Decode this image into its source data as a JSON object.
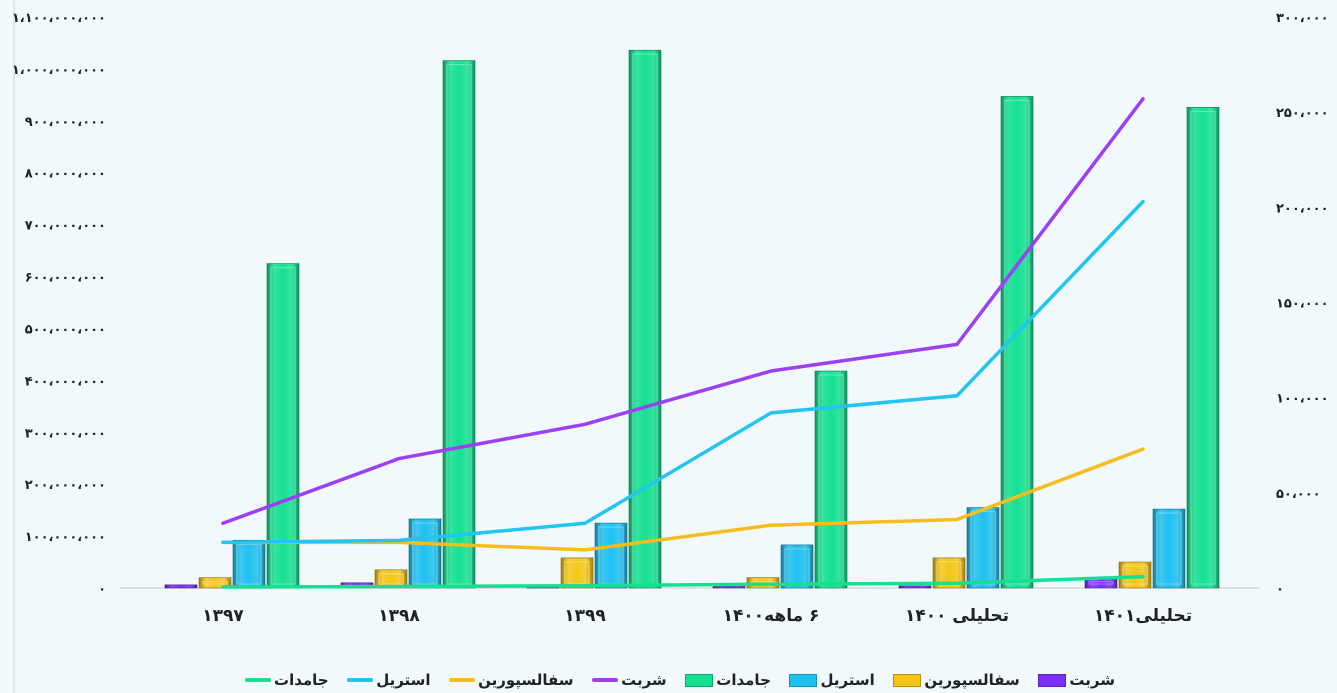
{
  "chart_data": {
    "type": "bar",
    "categories": [
      "۱۳۹۷",
      "۱۳۹۸",
      "۱۳۹۹",
      "۶ ماهه۱۴۰۰",
      "تحلیلی ۱۴۰۰",
      "تحلیلی۱۴۰۱"
    ],
    "left_axis": {
      "ylim": [
        0,
        1100000000
      ],
      "ticks": [
        "۰",
        "۱۰۰،۰۰۰،۰۰۰",
        "۲۰۰،۰۰۰،۰۰۰",
        "۳۰۰،۰۰۰،۰۰۰",
        "۴۰۰،۰۰۰،۰۰۰",
        "۵۰۰،۰۰۰،۰۰۰",
        "۶۰۰،۰۰۰،۰۰۰",
        "۷۰۰،۰۰۰،۰۰۰",
        "۸۰۰،۰۰۰،۰۰۰",
        "۹۰۰،۰۰۰،۰۰۰",
        "۱،۰۰۰،۰۰۰،۰۰۰",
        "۱،۱۰۰،۰۰۰،۰۰۰"
      ]
    },
    "right_axis": {
      "ylim": [
        0,
        300000
      ],
      "ticks": [
        "۰",
        "۵۰،۰۰۰",
        "۱۰۰،۰۰۰",
        "۱۵۰،۰۰۰",
        "۲۰۰،۰۰۰",
        "۲۵۰،۰۰۰",
        "۳۰۰،۰۰۰"
      ]
    },
    "bar_series": [
      {
        "name": "شربت",
        "color": "#7b2ff7",
        "values": [
          6000000,
          10000000,
          2000000,
          3000000,
          4000000,
          20000000
        ]
      },
      {
        "name": "سفالسپورین",
        "color": "#f5c518",
        "values": [
          20000000,
          35000000,
          58000000,
          20000000,
          58000000,
          50000000
        ]
      },
      {
        "name": "استریل",
        "color": "#1ec0f0",
        "values": [
          92000000,
          133000000,
          125000000,
          83000000,
          155000000,
          152000000
        ]
      },
      {
        "name": "جامدات",
        "color": "#14e090",
        "values": [
          625000000,
          1016000000,
          1036000000,
          418000000,
          947000000,
          926000000
        ]
      }
    ],
    "line_series": [
      {
        "name": "شربت",
        "color": "#9b40f5",
        "values": [
          34000,
          68000,
          86000,
          114000,
          128000,
          257000
        ]
      },
      {
        "name": "سفالسپورین",
        "color": "#f6bd1d",
        "values": [
          24000,
          24000,
          20000,
          33000,
          36000,
          73000
        ]
      },
      {
        "name": "استریل",
        "color": "#22c4f0",
        "values": [
          24000,
          25000,
          34000,
          92000,
          101000,
          203000
        ]
      },
      {
        "name": "جامدات",
        "color": "#14e090",
        "values": [
          500,
          800,
          1200,
          2000,
          2500,
          6000
        ]
      }
    ],
    "legend": [
      {
        "label": "شربت",
        "kind": "bar",
        "color": "#7b2ff7"
      },
      {
        "label": "سفالسپورین",
        "kind": "bar",
        "color": "#f5c518"
      },
      {
        "label": "استریل",
        "kind": "bar",
        "color": "#1ec0f0"
      },
      {
        "label": "جامدات",
        "kind": "bar",
        "color": "#14e090"
      },
      {
        "label": "شربت",
        "kind": "line",
        "color": "#9b40f5"
      },
      {
        "label": "سفالسپورین",
        "kind": "line",
        "color": "#f6bd1d"
      },
      {
        "label": "استریل",
        "kind": "line",
        "color": "#22c4f0"
      },
      {
        "label": "جامدات",
        "kind": "line",
        "color": "#14e090"
      }
    ],
    "legend_position": "bottom",
    "grid": false
  }
}
